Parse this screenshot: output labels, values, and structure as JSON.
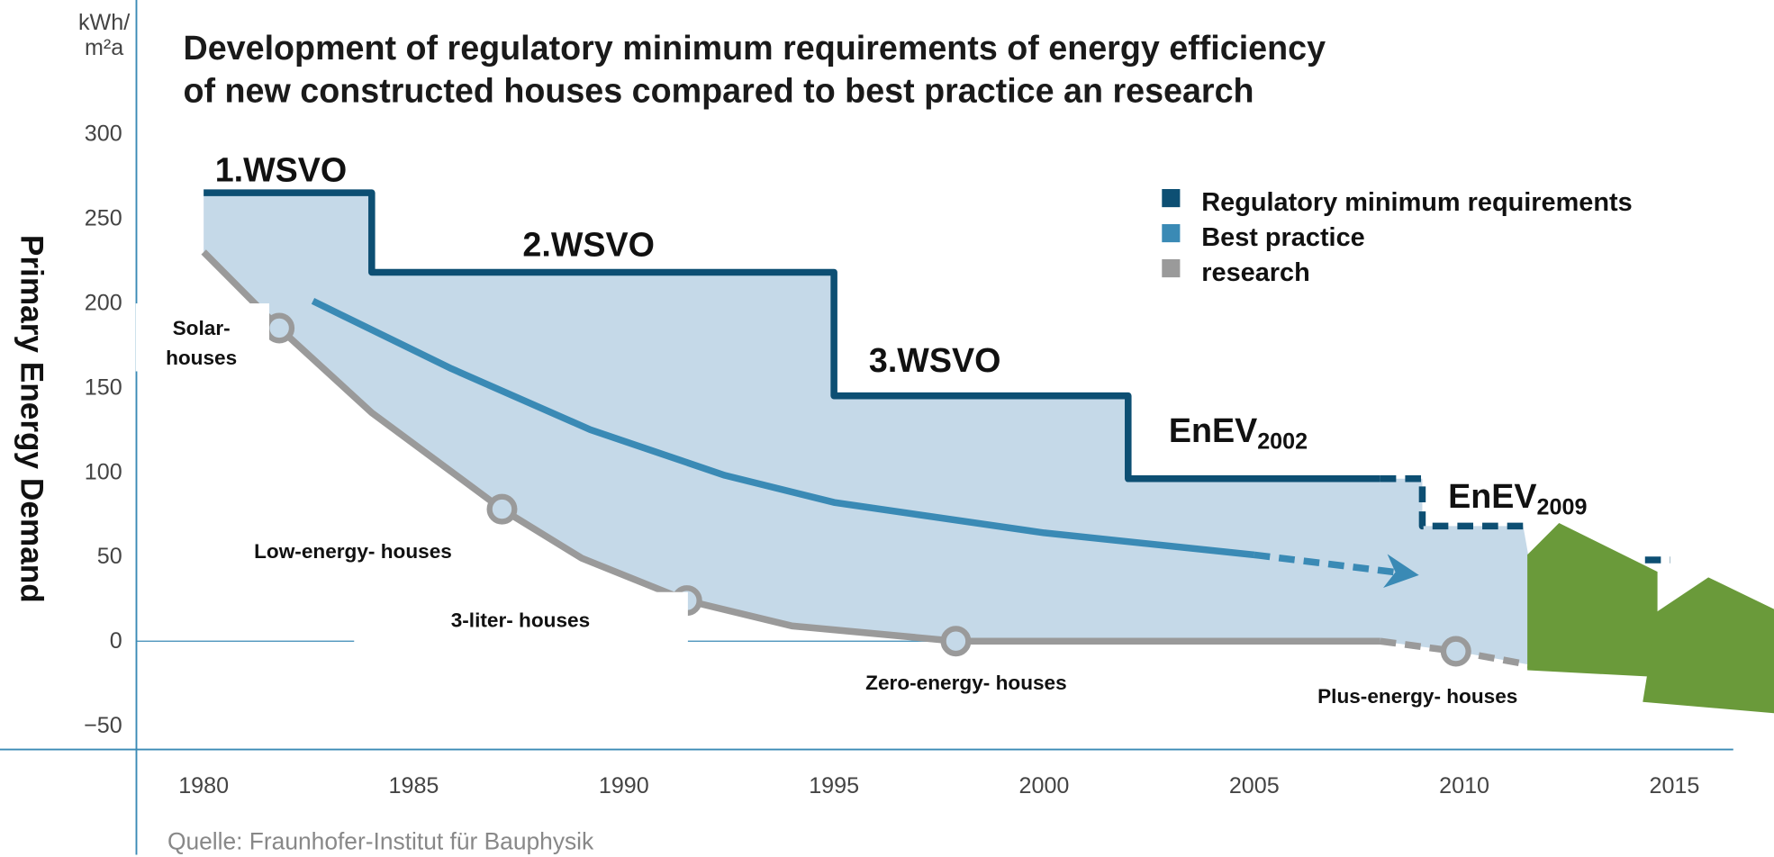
{
  "chart_data": {
    "type": "line",
    "title": [
      "Development of regulatory minimum requirements of energy efficiency",
      "of new constructed houses compared to best practice an research"
    ],
    "y_label": "Primary Energy Demand",
    "y_unit": [
      "kWh/",
      "m²a"
    ],
    "source": "Quelle: Fraunhofer-Institut für Bauphysik",
    "xlim": [
      1976.5,
      2016.4
    ],
    "ylim": [
      -64,
      310
    ],
    "xticks": [
      1980,
      1985,
      1990,
      1995,
      2000,
      2005,
      2010,
      2015
    ],
    "yticks": [
      300,
      250,
      200,
      150,
      100,
      50,
      0,
      {
        "value": -50,
        "label": "−50"
      }
    ],
    "zero_line": true,
    "dash_from": 2008,
    "band_color": "#c5d9e8",
    "series": [
      {
        "name": "Regulatory minimum requirements",
        "color": "#0d4f73",
        "x": [
          1980,
          1984,
          1984,
          1995,
          1995,
          2002,
          2002,
          2008,
          2009,
          2009,
          2011.4,
          2013,
          2014.3,
          2014.9
        ],
        "values": [
          265,
          265,
          218,
          218,
          145,
          145,
          96,
          96,
          96,
          68,
          68,
          null,
          48,
          48
        ]
      },
      {
        "name": "Best practice",
        "color": "#3a8ab5",
        "arrow": true,
        "x": [
          1982.6,
          1985.9,
          1989.2,
          1992.4,
          1995,
          2000,
          2005,
          2008.6
        ],
        "values": [
          201,
          161,
          125,
          98,
          82,
          64,
          51,
          40
        ]
      },
      {
        "name": "research",
        "color": "#9a9a9a",
        "x": [
          1980,
          1981.8,
          1984,
          1987.1,
          1989,
          1991.5,
          1994,
          1997.9,
          2008,
          2009.8,
          2012
        ],
        "values": [
          230,
          185,
          135,
          78,
          49,
          24,
          9,
          0,
          0,
          -6,
          -16
        ],
        "marked": [
          false,
          true,
          false,
          true,
          false,
          true,
          false,
          true,
          false,
          true,
          false
        ]
      }
    ],
    "regulation_labels": [
      {
        "text": "1.WSVO"
      },
      {
        "text": "2.WSVO"
      },
      {
        "text": "3.WSVO"
      },
      {
        "text": "EnEV",
        "sub": "2002"
      },
      {
        "text": "EnEV",
        "sub": "2009"
      }
    ],
    "house_labels": [
      [
        "Solar-",
        "houses"
      ],
      [
        "Low-energy- houses"
      ],
      [
        "3-liter- houses"
      ],
      [
        "Zero-energy- houses"
      ],
      [
        "Plus-energy- houses"
      ]
    ]
  }
}
